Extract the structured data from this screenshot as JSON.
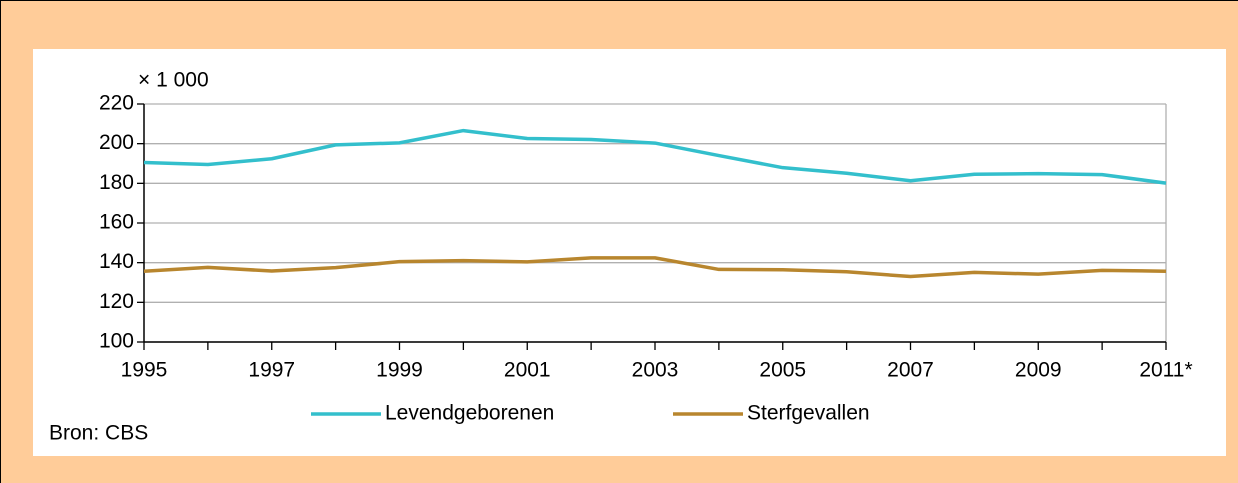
{
  "chart_data": {
    "type": "line",
    "unit_label": "× 1 000",
    "source": "Bron: CBS",
    "x": [
      1995,
      1996,
      1997,
      1998,
      1999,
      2000,
      2001,
      2002,
      2003,
      2004,
      2005,
      2006,
      2007,
      2008,
      2009,
      2010,
      2011
    ],
    "series": [
      {
        "name": "Levendgeborenen",
        "color": "#33bfcc",
        "values": [
          190.5,
          189.5,
          192.4,
          199.4,
          200.4,
          206.6,
          202.6,
          202.1,
          200.3,
          194.0,
          187.9,
          185.1,
          181.3,
          184.6,
          184.9,
          184.4,
          180.1
        ]
      },
      {
        "name": "Sterfgevallen",
        "color": "#b8862e",
        "values": [
          135.7,
          137.6,
          135.8,
          137.5,
          140.5,
          141.0,
          140.4,
          142.4,
          142.4,
          136.6,
          136.4,
          135.4,
          133.0,
          135.1,
          134.2,
          136.1,
          135.7
        ]
      }
    ],
    "xlim": [
      1995,
      2011
    ],
    "xticks": [
      1995,
      1997,
      1999,
      2001,
      2003,
      2005,
      2007,
      2009,
      {
        "value": 2011,
        "label": "2011*"
      }
    ],
    "xminorticks": [
      1996,
      1998,
      2000,
      2002,
      2004,
      2006,
      2008,
      2010
    ],
    "ylim": [
      100,
      220
    ],
    "yticks": [
      100,
      120,
      140,
      160,
      180,
      200,
      220
    ],
    "grid": true,
    "legend": "bottom"
  }
}
